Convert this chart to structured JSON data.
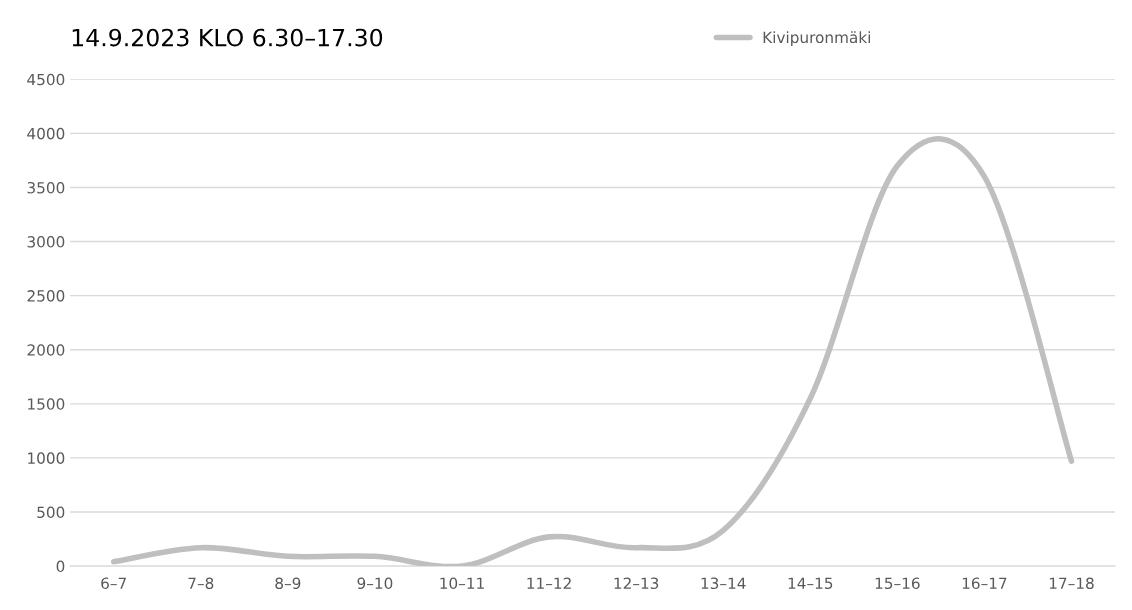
{
  "chart_data": {
    "type": "line",
    "title": "14.9.2023 KLO 6.30–17.30",
    "categories": [
      "6–7",
      "7–8",
      "8–9",
      "9–10",
      "10–11",
      "11–12",
      "12–13",
      "13–14",
      "14–15",
      "15–16",
      "16–17",
      "17–18"
    ],
    "series": [
      {
        "name": "Kivipuronmäki",
        "color": "#bfbfbf",
        "values": [
          40,
          170,
          90,
          90,
          0,
          270,
          170,
          330,
          1550,
          3700,
          3600,
          970
        ]
      }
    ],
    "ylim": [
      0,
      4500
    ],
    "yticks": [
      0,
      500,
      1000,
      1500,
      2000,
      2500,
      3000,
      3500,
      4000,
      4500
    ],
    "grid": "y",
    "legend": "top right",
    "marker": "none",
    "line_style": "solid"
  }
}
